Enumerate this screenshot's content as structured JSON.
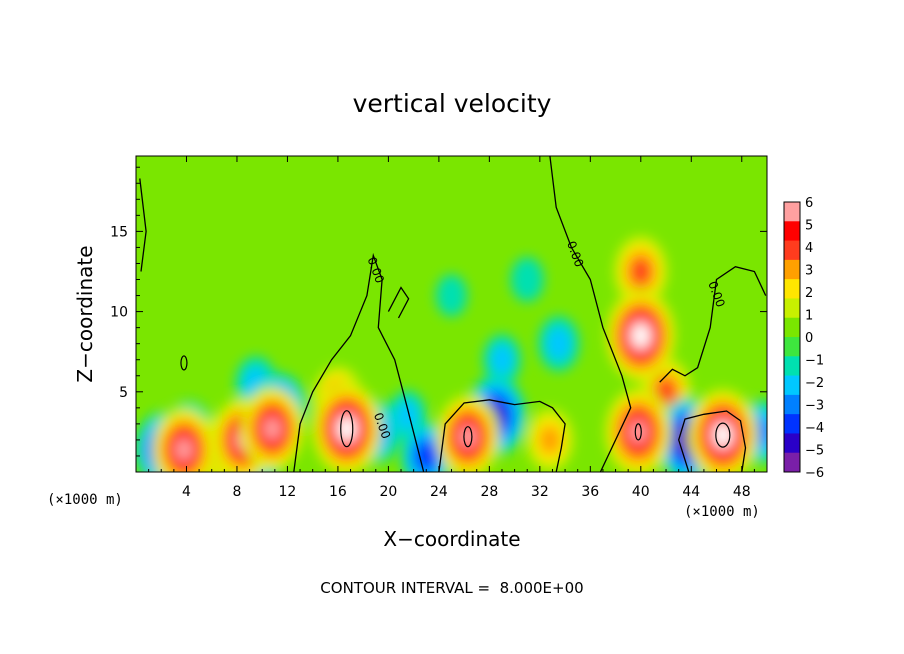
{
  "chart_data": {
    "type": "heatmap",
    "title": "vertical velocity",
    "xlabel": "X−coordinate",
    "ylabel": "Z−coordinate",
    "x_unit": "(×1000 m)",
    "y_unit": "(×1000 m)",
    "xlim": [
      0,
      50
    ],
    "ylim": [
      0,
      19.7
    ],
    "x_ticks": [
      4,
      8,
      12,
      16,
      20,
      24,
      28,
      32,
      36,
      40,
      44,
      48
    ],
    "y_ticks": [
      5,
      10,
      15
    ],
    "colorbar": {
      "ticks": [
        6,
        5,
        4,
        3,
        2,
        1,
        0,
        -1,
        -2,
        -3,
        -4,
        -5,
        -6
      ],
      "tick_labels": [
        "6",
        "5",
        "4",
        "3",
        "2",
        "1",
        "0",
        "−1",
        "−2",
        "−3",
        "−4",
        "−5",
        "−6"
      ],
      "range": [
        -6,
        6
      ],
      "colors": [
        "#7a1fa8",
        "#2a00c8",
        "#0033ff",
        "#0080ff",
        "#00c8ff",
        "#00e0b0",
        "#3ee63e",
        "#7ae600",
        "#c8f000",
        "#ffe600",
        "#ffa000",
        "#ff3c1e",
        "#ff0000",
        "#ffa0a0"
      ]
    },
    "background_value": 0.6,
    "features": [
      {
        "x": 2.2,
        "z": 1.4,
        "value": -4.5
      },
      {
        "x": 3.8,
        "z": 1.4,
        "value": 5.5
      },
      {
        "x": 4.2,
        "z": 2.3,
        "value": -3.5
      },
      {
        "x": 6.8,
        "z": 1.5,
        "value": 3.5
      },
      {
        "x": 8.5,
        "z": 2.0,
        "value": 5.5
      },
      {
        "x": 9.3,
        "z": 1.4,
        "value": -5.0
      },
      {
        "x": 10.8,
        "z": 2.7,
        "value": 5.5
      },
      {
        "x": 11.3,
        "z": 3.8,
        "value": -4.5
      },
      {
        "x": 9.5,
        "z": 5.5,
        "value": -2.0
      },
      {
        "x": 16.7,
        "z": 2.7,
        "value": 6.5
      },
      {
        "x": 16.0,
        "z": 4.5,
        "value": 3.5
      },
      {
        "x": 19.0,
        "z": 2.5,
        "value": -3.0
      },
      {
        "x": 21.5,
        "z": 3.5,
        "value": -1.5
      },
      {
        "x": 23.0,
        "z": 1.0,
        "value": -3.5
      },
      {
        "x": 26.3,
        "z": 2.2,
        "value": 5.5
      },
      {
        "x": 28.5,
        "z": 3.5,
        "value": -5.0
      },
      {
        "x": 29.0,
        "z": 7.0,
        "value": -1.5
      },
      {
        "x": 32.8,
        "z": 2.0,
        "value": 3.0
      },
      {
        "x": 33.5,
        "z": 8.0,
        "value": -2.0
      },
      {
        "x": 40.0,
        "z": 8.5,
        "value": 6.5
      },
      {
        "x": 40.0,
        "z": 12.5,
        "value": 4.0
      },
      {
        "x": 42.0,
        "z": 5.0,
        "value": 3.5
      },
      {
        "x": 39.8,
        "z": 2.5,
        "value": 6.0
      },
      {
        "x": 43.8,
        "z": 2.0,
        "value": -5.5
      },
      {
        "x": 46.5,
        "z": 2.3,
        "value": 6.5
      },
      {
        "x": 49.5,
        "z": 2.5,
        "value": -3.0
      },
      {
        "x": 31.0,
        "z": 12.0,
        "value": -0.8
      },
      {
        "x": 25.0,
        "z": 11.0,
        "value": -0.5
      }
    ],
    "contours": [
      {
        "level": 0.0,
        "label": "0.00",
        "label_at": [
          18.7,
          12.5
        ]
      },
      {
        "level": 0.0,
        "label": "0.00",
        "label_at": [
          19.2,
          2.8
        ]
      },
      {
        "level": 0.0,
        "label": "0.00",
        "label_at": [
          34.5,
          13.5
        ]
      },
      {
        "level": 0.0,
        "label": "0.00",
        "label_at": [
          45.7,
          11.0
        ]
      }
    ]
  },
  "contour_interval_text": "CONTOUR INTERVAL =  8.000E+00"
}
